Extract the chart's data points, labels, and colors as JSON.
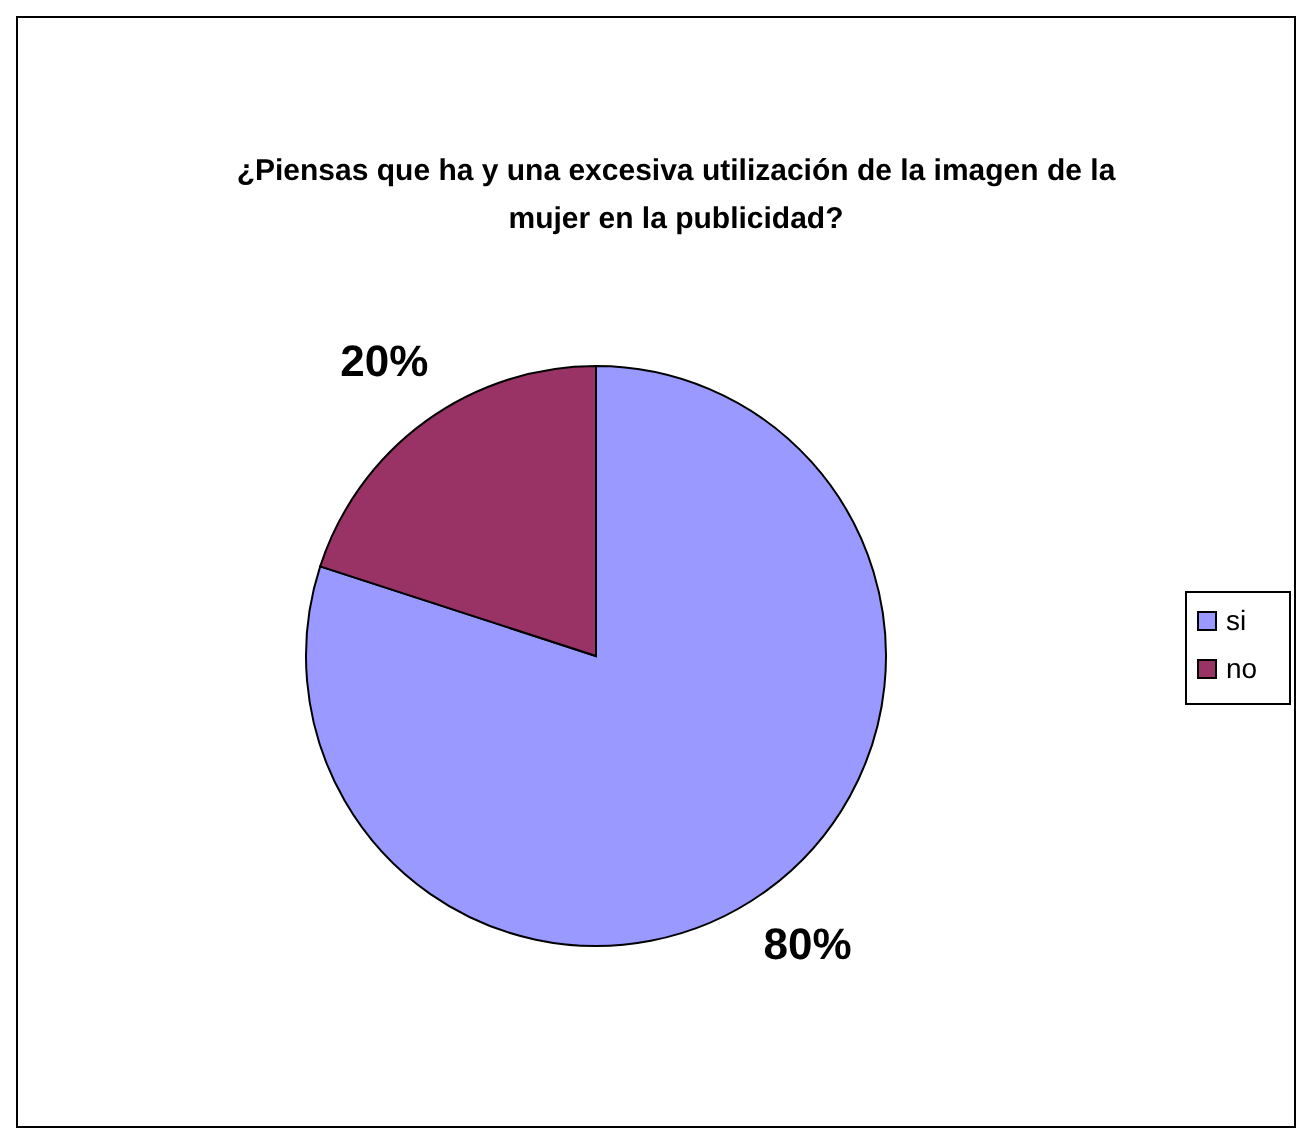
{
  "chart_data": {
    "type": "pie",
    "title": "¿Piensas que ha y una excesiva utilización de la imagen de la mujer en la publicidad?",
    "categories": [
      "si",
      "no"
    ],
    "values": [
      80,
      20
    ],
    "colors": [
      "#9999ff",
      "#993366"
    ],
    "value_labels": [
      "80%",
      "20%"
    ],
    "legend": "right"
  }
}
